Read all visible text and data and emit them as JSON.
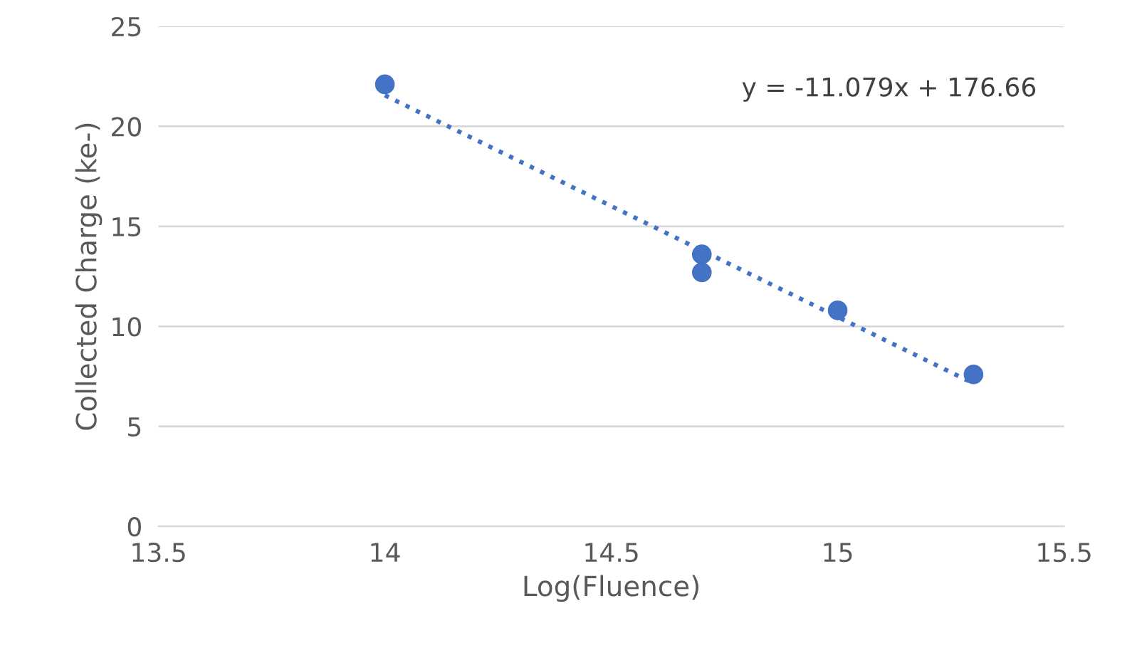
{
  "chart_data": {
    "type": "scatter",
    "xlabel": "Log(Fluence)",
    "ylabel": "Collected Charge (ke-)",
    "xlim": [
      13.5,
      15.5
    ],
    "xticks": [
      13.5,
      14,
      14.5,
      15,
      15.5
    ],
    "ylim": [
      0,
      25
    ],
    "yticks": [
      0,
      5,
      10,
      15,
      20,
      25
    ],
    "grid": "y",
    "legend": false,
    "series": [
      {
        "color": "#4472c4",
        "marker": "circle",
        "x": [
          14,
          14.7,
          14.7,
          15,
          15.3
        ],
        "values": [
          22.1,
          13.6,
          12.7,
          10.8,
          7.6
        ]
      },
      {
        "type": "line",
        "color": "#4472c4",
        "marker": "none",
        "line_style": "dotted",
        "x": [
          14,
          15.3
        ],
        "values": [
          21.55,
          7.15
        ]
      }
    ],
    "annotations": [
      "y = -11.079x + 176.66"
    ]
  }
}
